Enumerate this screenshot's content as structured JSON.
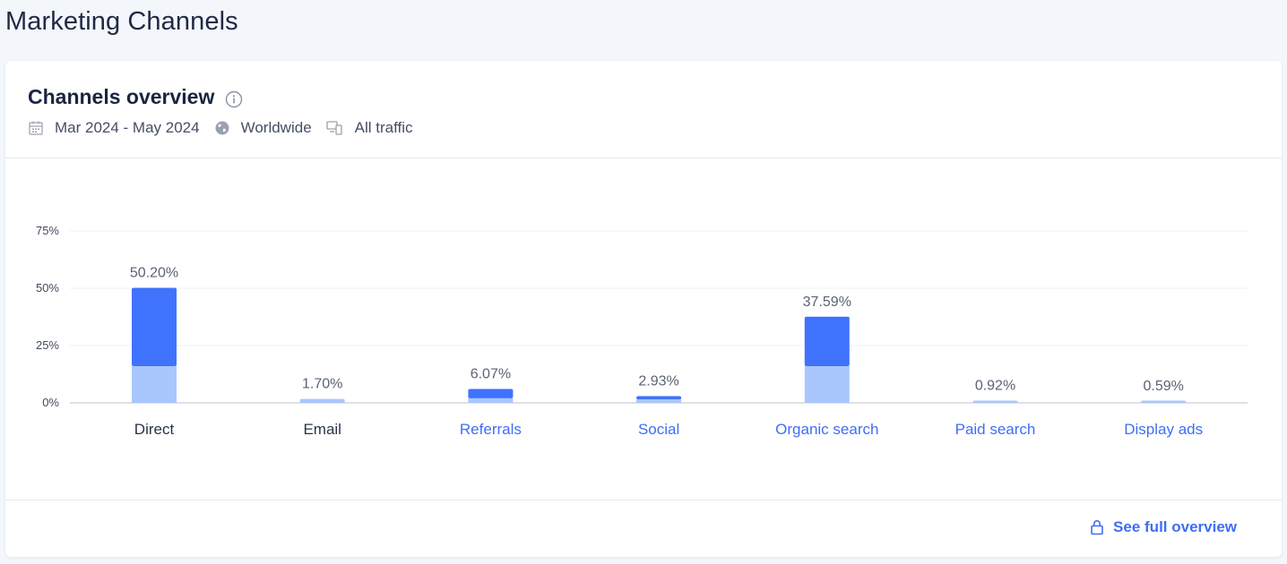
{
  "page": {
    "title": "Marketing Channels"
  },
  "card": {
    "title": "Channels overview",
    "info_icon": "info-icon",
    "meta": {
      "date_range": "Mar 2024 - May 2024",
      "date_icon": "calendar-icon",
      "region": "Worldwide",
      "region_icon": "globe-icon",
      "traffic": "All traffic",
      "traffic_icon": "devices-icon"
    },
    "footer": {
      "link_label": "See full overview",
      "link_icon": "lock-icon"
    }
  },
  "colors": {
    "dark_bar": "#3f72fd",
    "light_bar": "#a9c7fd",
    "link": "#3f6ef5",
    "tick_text": "#414a5c",
    "grid": "#eef1f6"
  },
  "chart_data": {
    "type": "bar",
    "stacked": true,
    "categories": [
      "Direct",
      "Email",
      "Referrals",
      "Social",
      "Organic search",
      "Paid search",
      "Display ads"
    ],
    "category_links": [
      false,
      false,
      true,
      true,
      true,
      true,
      true
    ],
    "value_labels": [
      "50.20%",
      "1.70%",
      "6.07%",
      "2.93%",
      "37.59%",
      "0.92%",
      "0.59%"
    ],
    "totals": [
      50.2,
      1.7,
      6.07,
      2.93,
      37.59,
      0.92,
      0.59
    ],
    "series": [
      {
        "values": [
          16.0,
          1.7,
          2.0,
          1.5,
          16.0,
          0.92,
          0.59
        ]
      },
      {
        "values": [
          34.2,
          0.0,
          4.07,
          1.43,
          21.59,
          0.0,
          0.0
        ]
      }
    ],
    "y_ticks": [
      "0%",
      "25%",
      "50%",
      "75%"
    ],
    "y_tick_values": [
      0,
      25,
      50,
      75
    ],
    "ylim": [
      0,
      75
    ],
    "grid": true
  }
}
